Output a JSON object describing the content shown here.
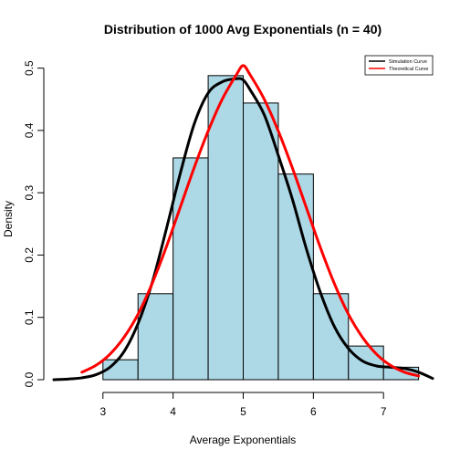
{
  "chart_data": {
    "type": "bar",
    "title": "Distribution of 1000 Avg Exponentials (n = 40)",
    "xlabel": "Average Exponentials",
    "ylabel": "Density",
    "xlim": [
      2.3,
      7.7
    ],
    "ylim": [
      0,
      0.52
    ],
    "x_ticks": [
      "3",
      "4",
      "5",
      "6",
      "7"
    ],
    "y_ticks": [
      "0.0",
      "0.1",
      "0.2",
      "0.3",
      "0.4",
      "0.5"
    ],
    "grid": false,
    "legend_position": "top-right",
    "bar_color": "#add8e6",
    "bins": [
      {
        "start": 3.0,
        "end": 3.5,
        "density": 0.032
      },
      {
        "start": 3.5,
        "end": 4.0,
        "density": 0.138
      },
      {
        "start": 4.0,
        "end": 4.5,
        "density": 0.356
      },
      {
        "start": 4.5,
        "end": 5.0,
        "density": 0.488
      },
      {
        "start": 5.0,
        "end": 5.5,
        "density": 0.444
      },
      {
        "start": 5.5,
        "end": 6.0,
        "density": 0.33
      },
      {
        "start": 6.0,
        "end": 6.5,
        "density": 0.138
      },
      {
        "start": 6.5,
        "end": 7.0,
        "density": 0.054
      },
      {
        "start": 7.0,
        "end": 7.5,
        "density": 0.02
      }
    ],
    "series": [
      {
        "name": "Simulation Curve",
        "color": "#000000",
        "x": [
          2.3,
          2.5,
          2.7,
          2.9,
          3.1,
          3.3,
          3.5,
          3.7,
          3.9,
          4.1,
          4.3,
          4.5,
          4.7,
          4.9,
          5.0,
          5.1,
          5.3,
          5.5,
          5.7,
          5.9,
          6.1,
          6.3,
          6.5,
          6.7,
          6.9,
          7.1,
          7.3,
          7.5,
          7.7
        ],
        "y": [
          0.0,
          0.001,
          0.003,
          0.008,
          0.02,
          0.045,
          0.09,
          0.155,
          0.24,
          0.33,
          0.41,
          0.46,
          0.478,
          0.483,
          0.481,
          0.465,
          0.425,
          0.36,
          0.29,
          0.21,
          0.14,
          0.085,
          0.05,
          0.03,
          0.022,
          0.02,
          0.018,
          0.012,
          0.002
        ]
      },
      {
        "name": "Theoretical Curve",
        "color": "#ff0000",
        "x": [
          2.7,
          2.9,
          3.1,
          3.3,
          3.5,
          3.7,
          3.9,
          4.1,
          4.3,
          4.5,
          4.7,
          4.9,
          5.0,
          5.1,
          5.3,
          5.5,
          5.7,
          5.9,
          6.1,
          6.3,
          6.5,
          6.7,
          6.9,
          7.1,
          7.3,
          7.5
        ],
        "y": [
          0.012,
          0.023,
          0.041,
          0.068,
          0.105,
          0.154,
          0.212,
          0.276,
          0.34,
          0.399,
          0.45,
          0.489,
          0.504,
          0.489,
          0.45,
          0.399,
          0.34,
          0.276,
          0.212,
          0.154,
          0.105,
          0.068,
          0.041,
          0.023,
          0.012,
          0.006
        ]
      }
    ]
  }
}
